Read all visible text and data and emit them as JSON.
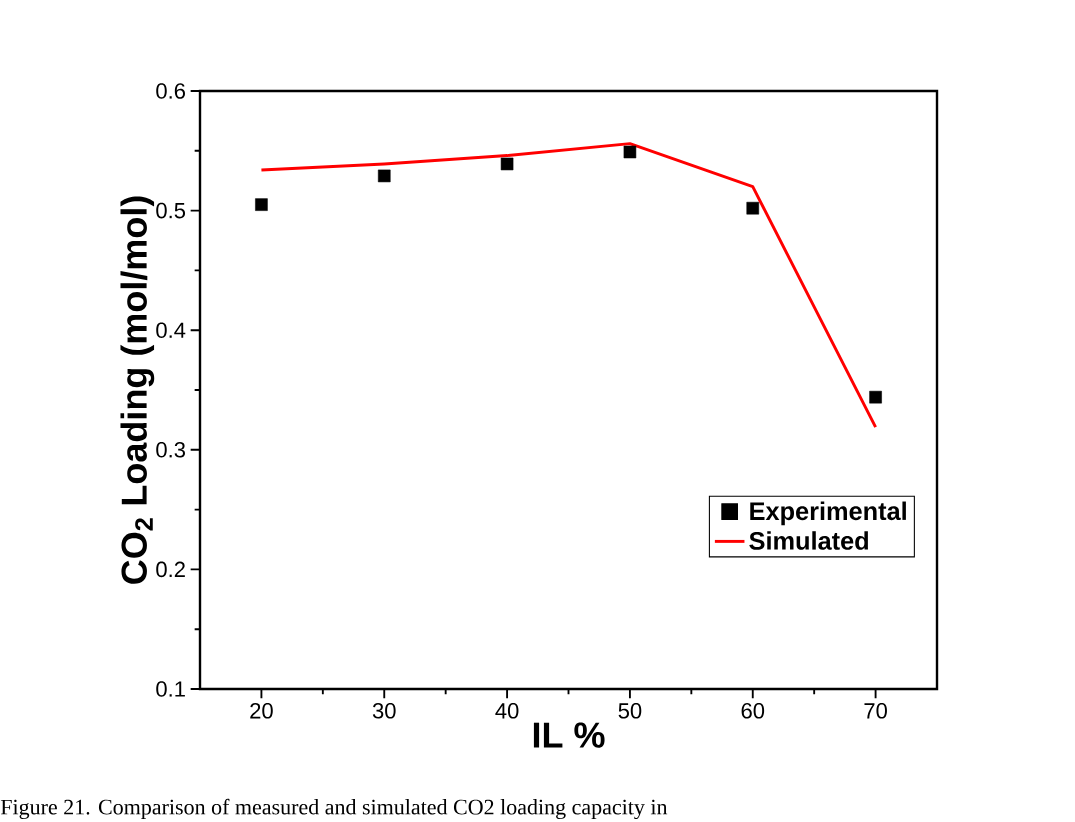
{
  "chart_data": {
    "type": "line",
    "xlabel": "IL %",
    "ylabel": "CO$_{2}$ Loading (mol/mol)",
    "x": [
      20,
      30,
      40,
      50,
      60,
      70
    ],
    "series": [
      {
        "name": "Experimental",
        "type": "scatter",
        "marker": "square",
        "color": "#000000",
        "values": [
          0.505,
          0.529,
          0.539,
          0.549,
          0.502,
          0.344
        ]
      },
      {
        "name": "Simulated",
        "color": "#ff0000",
        "values": [
          0.534,
          0.539,
          0.546,
          0.556,
          0.52,
          0.319
        ]
      }
    ],
    "xlim": [
      15,
      75
    ],
    "xticks": [
      20,
      30,
      40,
      50,
      60,
      70
    ],
    "ylim": [
      0.1,
      0.6
    ],
    "yticks": [
      0.1,
      0.2,
      0.3,
      0.4,
      0.5,
      0.6
    ],
    "grid": false,
    "legend": "bottom right",
    "line_style": "solid",
    "annotations": [
      "Figure 21. Comparison of measured and simulated CO2 loading capacity in"
    ]
  }
}
